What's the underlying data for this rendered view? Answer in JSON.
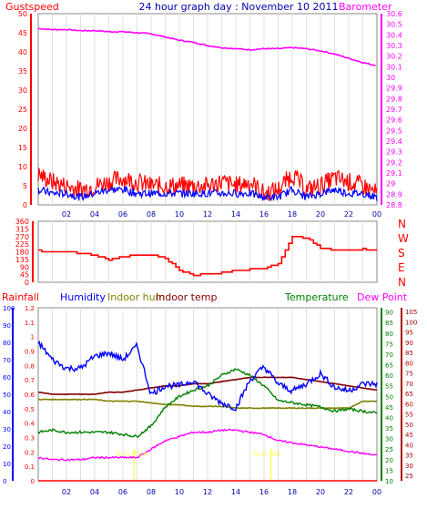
{
  "colors": {
    "red": "#ff0000",
    "blue": "#0000ff",
    "magenta": "#ff00ff",
    "green": "#008000",
    "olive": "#808000",
    "maroon": "#800000",
    "darkred": "#aa0000",
    "grid": "#e0e0e0",
    "sunrise": "#ffff66"
  },
  "chart_data": [
    {
      "id": "wind",
      "type": "line",
      "title": "24 hour graph day : November 10 2011",
      "left_label": "Gustspeed",
      "right_label": "Barometer",
      "x_ticks": [
        "02",
        "04",
        "06",
        "08",
        "10",
        "12",
        "14",
        "16",
        "18",
        "20",
        "22",
        "00"
      ],
      "left_ticks": [
        0,
        5,
        10,
        15,
        20,
        25,
        30,
        35,
        40,
        45,
        50
      ],
      "ylim_left": [
        0,
        50
      ],
      "right_ticks": [
        "28.8",
        "28.9",
        "29",
        "29.1",
        "29.2",
        "29.3",
        "29.4",
        "29.5",
        "29.6",
        "29.7",
        "29.8",
        "29.9",
        "30",
        "30.1",
        "30.2",
        "30.3",
        "30.4",
        "30.5",
        "30.6"
      ],
      "ylim_right": [
        28.8,
        30.6
      ],
      "barometer": {
        "x": [
          0,
          1,
          2,
          3,
          4,
          5,
          6,
          7,
          8,
          9,
          10,
          11,
          12,
          13,
          14,
          15,
          16,
          17,
          18,
          19,
          20,
          21,
          22,
          23,
          24
        ],
        "y": [
          30.46,
          30.45,
          30.45,
          30.44,
          30.44,
          30.43,
          30.43,
          30.42,
          30.41,
          30.38,
          30.35,
          30.33,
          30.3,
          30.28,
          30.27,
          30.26,
          30.27,
          30.27,
          30.28,
          30.27,
          30.25,
          30.22,
          30.18,
          30.14,
          30.11
        ]
      },
      "gust": {
        "x": [
          0,
          1,
          2,
          3,
          4,
          5,
          6,
          7,
          8,
          9,
          10,
          11,
          12,
          13,
          14,
          15,
          16,
          17,
          18,
          19,
          20,
          21,
          22,
          23,
          24
        ],
        "y": [
          8,
          6,
          5,
          4,
          5,
          6,
          7,
          6,
          5,
          5,
          5,
          5,
          5,
          6,
          5,
          6,
          3,
          4,
          8,
          4,
          5,
          7,
          6,
          5,
          3
        ]
      },
      "average": {
        "x": [
          0,
          1,
          2,
          3,
          4,
          5,
          6,
          7,
          8,
          9,
          10,
          11,
          12,
          13,
          14,
          15,
          16,
          17,
          18,
          19,
          20,
          21,
          22,
          23,
          24
        ],
        "y": [
          4,
          3,
          3,
          2,
          3,
          4,
          4,
          3,
          3,
          3,
          3,
          3,
          3,
          3,
          3,
          3,
          2,
          2,
          4,
          2,
          3,
          4,
          3,
          3,
          2
        ]
      }
    },
    {
      "id": "direction",
      "type": "line",
      "x_ticks": [
        "02",
        "04",
        "06",
        "08",
        "10",
        "12",
        "14",
        "16",
        "18",
        "20",
        "22",
        "00"
      ],
      "left_ticks": [
        0,
        45,
        90,
        135,
        180,
        225,
        270,
        315,
        360
      ],
      "ylim": [
        0,
        360
      ],
      "compass": [
        "N",
        "W",
        "S",
        "E",
        "N"
      ],
      "series": {
        "x": [
          0,
          1,
          2,
          3,
          4,
          5,
          6,
          7,
          8,
          9,
          10,
          11,
          12,
          13,
          14,
          15,
          16,
          17,
          18,
          19,
          20,
          21,
          22,
          23,
          24
        ],
        "y": [
          185,
          180,
          180,
          170,
          160,
          130,
          150,
          160,
          160,
          140,
          70,
          40,
          50,
          55,
          70,
          75,
          80,
          110,
          270,
          260,
          200,
          190,
          190,
          195,
          190
        ]
      }
    },
    {
      "id": "climate",
      "type": "line",
      "x_ticks": [
        "02",
        "04",
        "06",
        "08",
        "10",
        "12",
        "14",
        "16",
        "18",
        "20",
        "22",
        "00"
      ],
      "legend": [
        "Rainfall",
        "Humidity",
        "Indoor hum",
        "Indoor temp",
        "Temperature",
        "Dew Point"
      ],
      "rain_ticks": [
        "0",
        "0.1",
        "0.2",
        "0.3",
        "0.4",
        "0.5",
        "0.6",
        "0.7",
        "0.8",
        "0.9",
        "1",
        "1.1",
        "1.2"
      ],
      "ylim_rain": [
        0,
        1.2
      ],
      "hum_ticks": [
        0,
        10,
        20,
        30,
        40,
        50,
        60,
        70,
        80,
        90,
        100
      ],
      "ylim_hum": [
        0,
        100
      ],
      "temp_ticks": [
        10,
        15,
        20,
        25,
        30,
        35,
        40,
        45,
        50,
        55,
        60,
        65,
        70,
        75,
        80,
        85,
        90
      ],
      "ylim_temp": [
        10,
        92
      ],
      "f_ticks": [
        25,
        30,
        35,
        40,
        45,
        50,
        55,
        60,
        65,
        70,
        75,
        80,
        85,
        90,
        95,
        100,
        105
      ],
      "sunrise_label": "Sun Rise",
      "sunset_label": "Sun Set",
      "sunrise_x": 6.8,
      "sunset_x": 16.5,
      "humidity": {
        "x": [
          0,
          1,
          2,
          3,
          4,
          5,
          6,
          7,
          8,
          9,
          10,
          11,
          12,
          13,
          14,
          15,
          16,
          17,
          18,
          19,
          20,
          21,
          22,
          23,
          24
        ],
        "y": [
          80,
          70,
          65,
          65,
          72,
          74,
          70,
          78,
          50,
          55,
          55,
          58,
          50,
          45,
          42,
          58,
          66,
          56,
          52,
          56,
          62,
          54,
          52,
          56,
          56
        ]
      },
      "indoor_hum": {
        "x": [
          0,
          1,
          2,
          3,
          4,
          5,
          6,
          7,
          8,
          9,
          10,
          11,
          12,
          13,
          14,
          15,
          16,
          17,
          18,
          19,
          20,
          21,
          22,
          23,
          24
        ],
        "y": [
          47,
          47,
          47,
          47,
          47,
          46,
          46,
          46,
          45,
          44,
          44,
          43,
          43,
          43,
          42,
          42,
          42,
          42,
          42,
          42,
          42,
          42,
          42,
          46,
          46
        ]
      },
      "indoor_temp": {
        "x": [
          0,
          1,
          2,
          3,
          4,
          5,
          6,
          7,
          8,
          9,
          10,
          11,
          12,
          13,
          14,
          15,
          16,
          17,
          18,
          19,
          20,
          21,
          22,
          23,
          24
        ],
        "y": [
          52,
          51,
          51,
          51,
          51,
          52,
          52,
          53,
          54,
          55,
          55,
          56,
          56,
          57,
          58,
          59,
          59,
          59,
          59,
          58,
          57,
          56,
          55,
          54,
          53
        ]
      },
      "temperature": {
        "x": [
          0,
          1,
          2,
          3,
          4,
          5,
          6,
          7,
          8,
          9,
          10,
          11,
          12,
          13,
          14,
          15,
          16,
          17,
          18,
          19,
          20,
          21,
          22,
          23,
          24
        ],
        "y": [
          33,
          34,
          33,
          33,
          33,
          33,
          32,
          31,
          36,
          45,
          50,
          53,
          55,
          60,
          63,
          60,
          55,
          48,
          47,
          46,
          45,
          43,
          44,
          43,
          42
        ]
      },
      "dew_point": {
        "x": [
          0,
          1,
          2,
          3,
          4,
          5,
          6,
          7,
          8,
          9,
          10,
          11,
          12,
          13,
          14,
          15,
          16,
          17,
          18,
          19,
          20,
          21,
          22,
          23,
          24
        ],
        "y": [
          21,
          20,
          20,
          20,
          21,
          21,
          21,
          21,
          25,
          29,
          31,
          33,
          33,
          34,
          34,
          33,
          32,
          29,
          28,
          27,
          26,
          25,
          24,
          23,
          22
        ]
      },
      "rainfall": {
        "x": [
          0,
          24
        ],
        "y": [
          0,
          0
        ]
      }
    }
  ]
}
